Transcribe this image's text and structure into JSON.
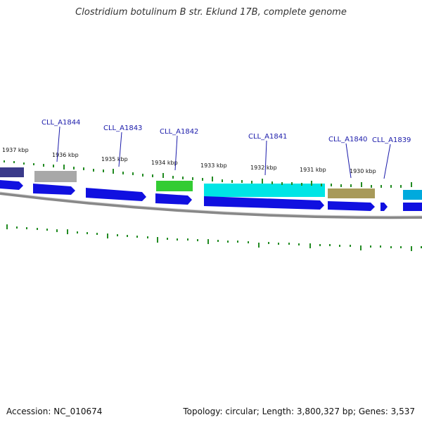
{
  "title": "Clostridium botulinum B str. Eklund 17B, complete genome",
  "footer": {
    "accession": "Accession: NC_010674",
    "summary": "Topology: circular; Length: 3,800,327 bp; Genes: 3,537"
  },
  "scale_labels": [
    "1937 kbp",
    "1936 kbp",
    "1935 kbp",
    "1934 kbp",
    "1933 kbp",
    "1932 kbp",
    "1931 kbp",
    "1930 kbp"
  ],
  "gene_labels": [
    "CLL_A1844",
    "CLL_A1843",
    "CLL_A1842",
    "CLL_A1841",
    "CLL_A1840",
    "CLL_A1839"
  ],
  "colors": {
    "gene_blue": "#1010e0",
    "backbone": "#888888",
    "tick_green": "#228b22",
    "label_blue": "#1a1aaa",
    "feature_navy": "#3a3a8a",
    "feature_gray": "#a8a8a8",
    "feature_green": "#33cc33",
    "feature_cyan": "#00e5e5",
    "feature_olive": "#a89a5a",
    "feature_teal": "#00aadd"
  }
}
